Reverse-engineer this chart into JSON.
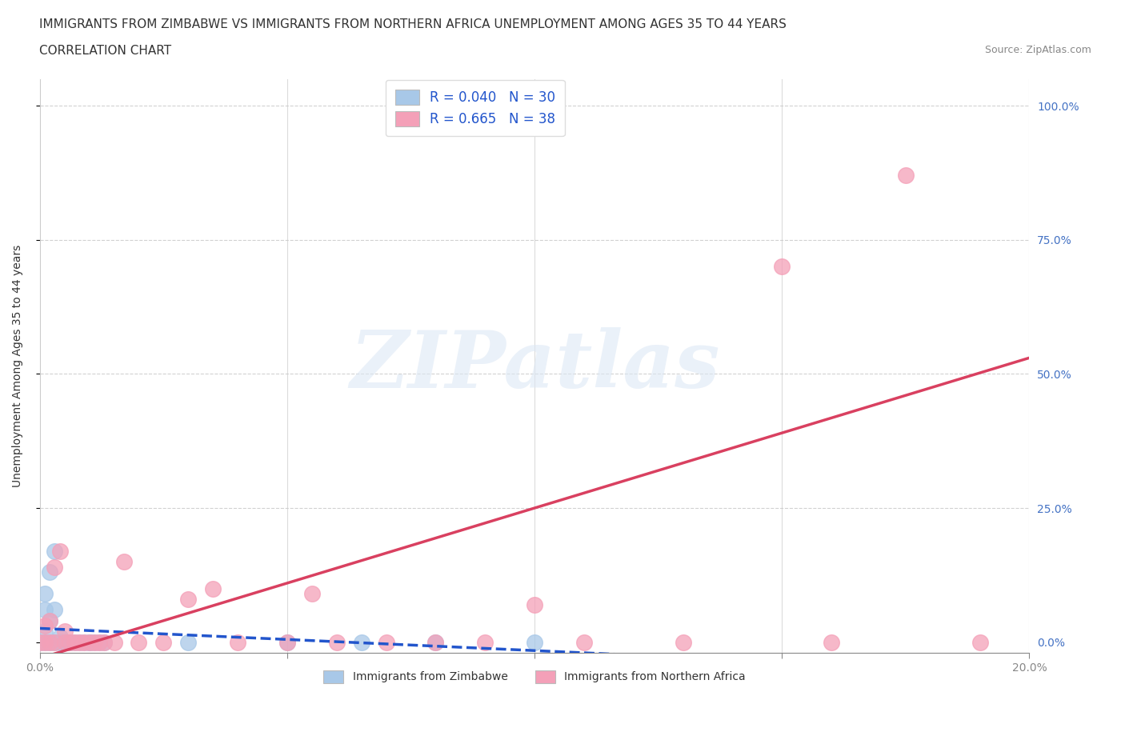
{
  "title_line1": "IMMIGRANTS FROM ZIMBABWE VS IMMIGRANTS FROM NORTHERN AFRICA UNEMPLOYMENT AMONG AGES 35 TO 44 YEARS",
  "title_line2": "CORRELATION CHART",
  "source": "Source: ZipAtlas.com",
  "ylabel": "Unemployment Among Ages 35 to 44 years",
  "xlim": [
    0.0,
    0.2
  ],
  "ylim": [
    -0.02,
    1.05
  ],
  "watermark_text": "ZIPatlas",
  "zimbabwe_color": "#a8c8e8",
  "northern_africa_color": "#f4a0b8",
  "zimbabwe_line_color": "#2255cc",
  "northern_africa_line_color": "#d94060",
  "legend_text_color": "#2255cc",
  "grid_color": "#cccccc",
  "background_color": "#ffffff",
  "title_fontsize": 11,
  "axis_label_fontsize": 10,
  "tick_fontsize": 10,
  "legend_fontsize": 12,
  "right_tick_color": "#4472c4",
  "zim_scatter_x": [
    0.0,
    0.001,
    0.001,
    0.001,
    0.001,
    0.002,
    0.002,
    0.002,
    0.003,
    0.003,
    0.003,
    0.004,
    0.004,
    0.005,
    0.005,
    0.006,
    0.006,
    0.007,
    0.008,
    0.009,
    0.01,
    0.01,
    0.011,
    0.012,
    0.013,
    0.03,
    0.05,
    0.065,
    0.08,
    0.1
  ],
  "zim_scatter_y": [
    0.0,
    0.0,
    0.02,
    0.06,
    0.09,
    0.0,
    0.04,
    0.13,
    0.0,
    0.06,
    0.17,
    0.0,
    0.01,
    0.0,
    0.0,
    0.0,
    0.0,
    0.0,
    0.0,
    0.0,
    0.0,
    0.0,
    0.0,
    0.0,
    0.0,
    0.0,
    0.0,
    0.0,
    0.0,
    0.0
  ],
  "na_scatter_x": [
    0.0,
    0.001,
    0.001,
    0.002,
    0.002,
    0.003,
    0.003,
    0.004,
    0.005,
    0.005,
    0.006,
    0.007,
    0.008,
    0.009,
    0.01,
    0.011,
    0.012,
    0.013,
    0.015,
    0.017,
    0.02,
    0.025,
    0.03,
    0.035,
    0.04,
    0.05,
    0.055,
    0.06,
    0.07,
    0.08,
    0.09,
    0.1,
    0.11,
    0.13,
    0.15,
    0.16,
    0.175,
    0.19
  ],
  "na_scatter_y": [
    0.0,
    0.0,
    0.03,
    0.0,
    0.04,
    0.0,
    0.14,
    0.17,
    0.0,
    0.02,
    0.0,
    0.0,
    0.0,
    0.0,
    0.0,
    0.0,
    0.0,
    0.0,
    0.0,
    0.15,
    0.0,
    0.0,
    0.08,
    0.1,
    0.0,
    0.0,
    0.09,
    0.0,
    0.0,
    0.0,
    0.0,
    0.07,
    0.0,
    0.0,
    0.7,
    0.0,
    0.87,
    0.0
  ],
  "legend_R_zim": "R = 0.040",
  "legend_N_zim": "N = 30",
  "legend_R_na": "R = 0.665",
  "legend_N_na": "N = 38",
  "legend_label_zim": "Immigrants from Zimbabwe",
  "legend_label_na": "Immigrants from Northern Africa"
}
